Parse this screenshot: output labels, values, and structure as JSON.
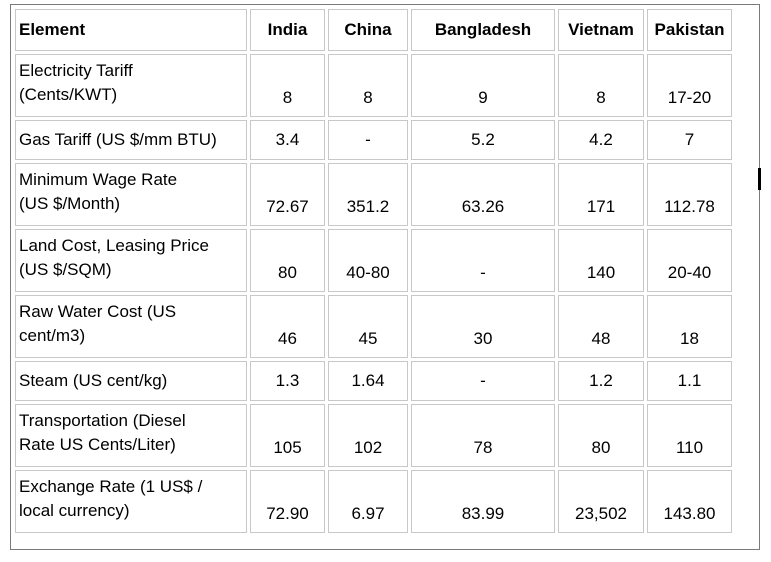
{
  "headers": [
    "Element",
    "India",
    "China",
    "Bangladesh",
    "Vietnam",
    "Pakistan"
  ],
  "rows": [
    {
      "label_lines": [
        "Electricity Tariff",
        "(Cents/KWT)"
      ],
      "values": [
        "8",
        "8",
        "9",
        "8",
        "17-20"
      ]
    },
    {
      "label_lines": [
        "Gas Tariff (US $/mm BTU)"
      ],
      "values": [
        "3.4",
        "-",
        "5.2",
        "4.2",
        "7"
      ]
    },
    {
      "label_lines": [
        "Minimum Wage Rate",
        "(US $/Month)"
      ],
      "values": [
        "72.67",
        "351.2",
        "63.26",
        "171",
        "112.78"
      ]
    },
    {
      "label_lines": [
        "Land Cost, Leasing Price",
        "(US $/SQM)"
      ],
      "values": [
        "80",
        "40-80",
        "-",
        "140",
        "20-40"
      ]
    },
    {
      "label_lines": [
        "Raw Water Cost (US",
        "cent/m3)"
      ],
      "values": [
        "46",
        "45",
        "30",
        "48",
        "18"
      ]
    },
    {
      "label_lines": [
        "Steam (US cent/kg)"
      ],
      "values": [
        "1.3",
        "1.64",
        "-",
        "1.2",
        "1.1"
      ]
    },
    {
      "label_lines": [
        "Transportation (Diesel",
        "Rate US Cents/Liter)"
      ],
      "values": [
        "105",
        "102",
        "78",
        "80",
        "110"
      ]
    },
    {
      "label_lines": [
        "Exchange Rate (1 US$ /",
        "local currency)"
      ],
      "values": [
        "72.90",
        "6.97",
        "83.99",
        "23,502",
        "143.80"
      ]
    }
  ]
}
